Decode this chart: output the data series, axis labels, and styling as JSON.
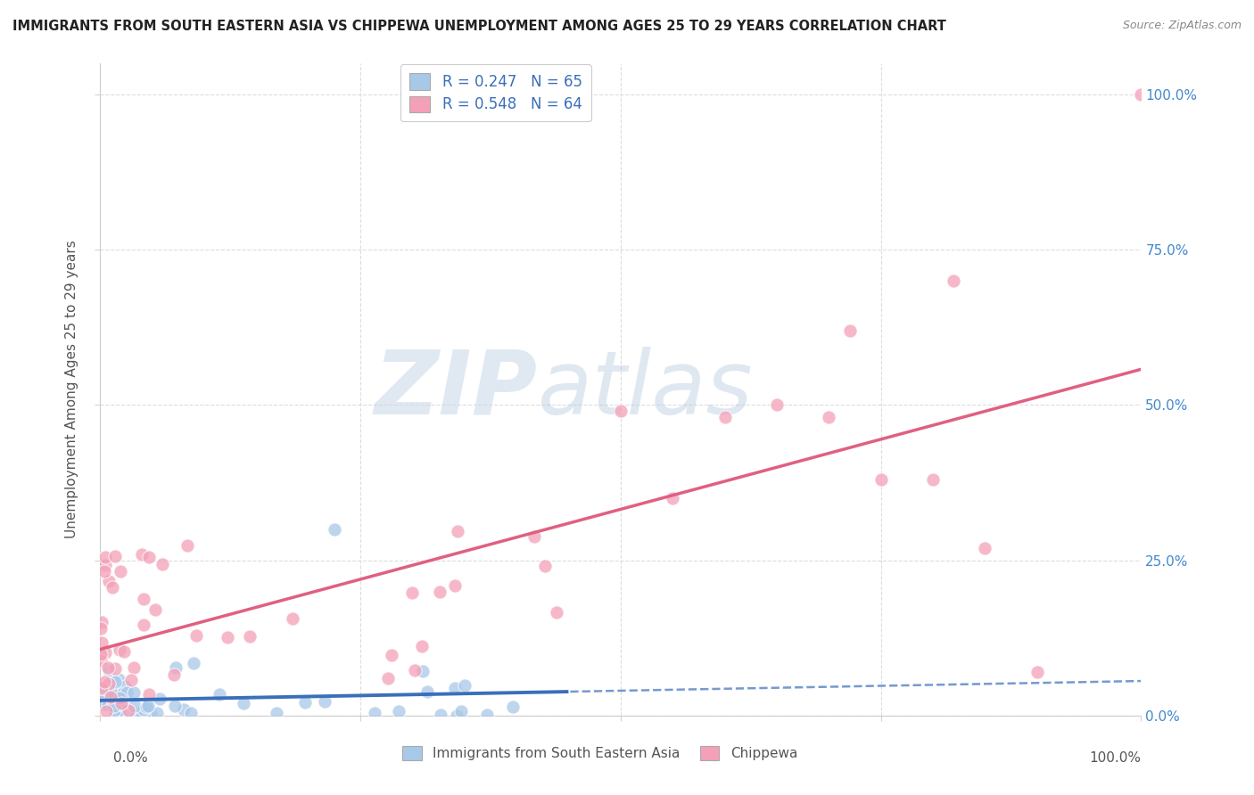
{
  "title": "IMMIGRANTS FROM SOUTH EASTERN ASIA VS CHIPPEWA UNEMPLOYMENT AMONG AGES 25 TO 29 YEARS CORRELATION CHART",
  "source": "Source: ZipAtlas.com",
  "ylabel": "Unemployment Among Ages 25 to 29 years",
  "legend_label1": "Immigrants from South Eastern Asia",
  "legend_label2": "Chippewa",
  "r1": 0.247,
  "n1": 65,
  "r2": 0.548,
  "n2": 64,
  "blue_color": "#a8c8e8",
  "pink_color": "#f4a0b8",
  "blue_line_color": "#3a6fba",
  "pink_line_color": "#e06080",
  "watermark_zip": "ZIP",
  "watermark_atlas": "atlas",
  "xlim": [
    0,
    1
  ],
  "ylim": [
    0,
    1.05
  ]
}
